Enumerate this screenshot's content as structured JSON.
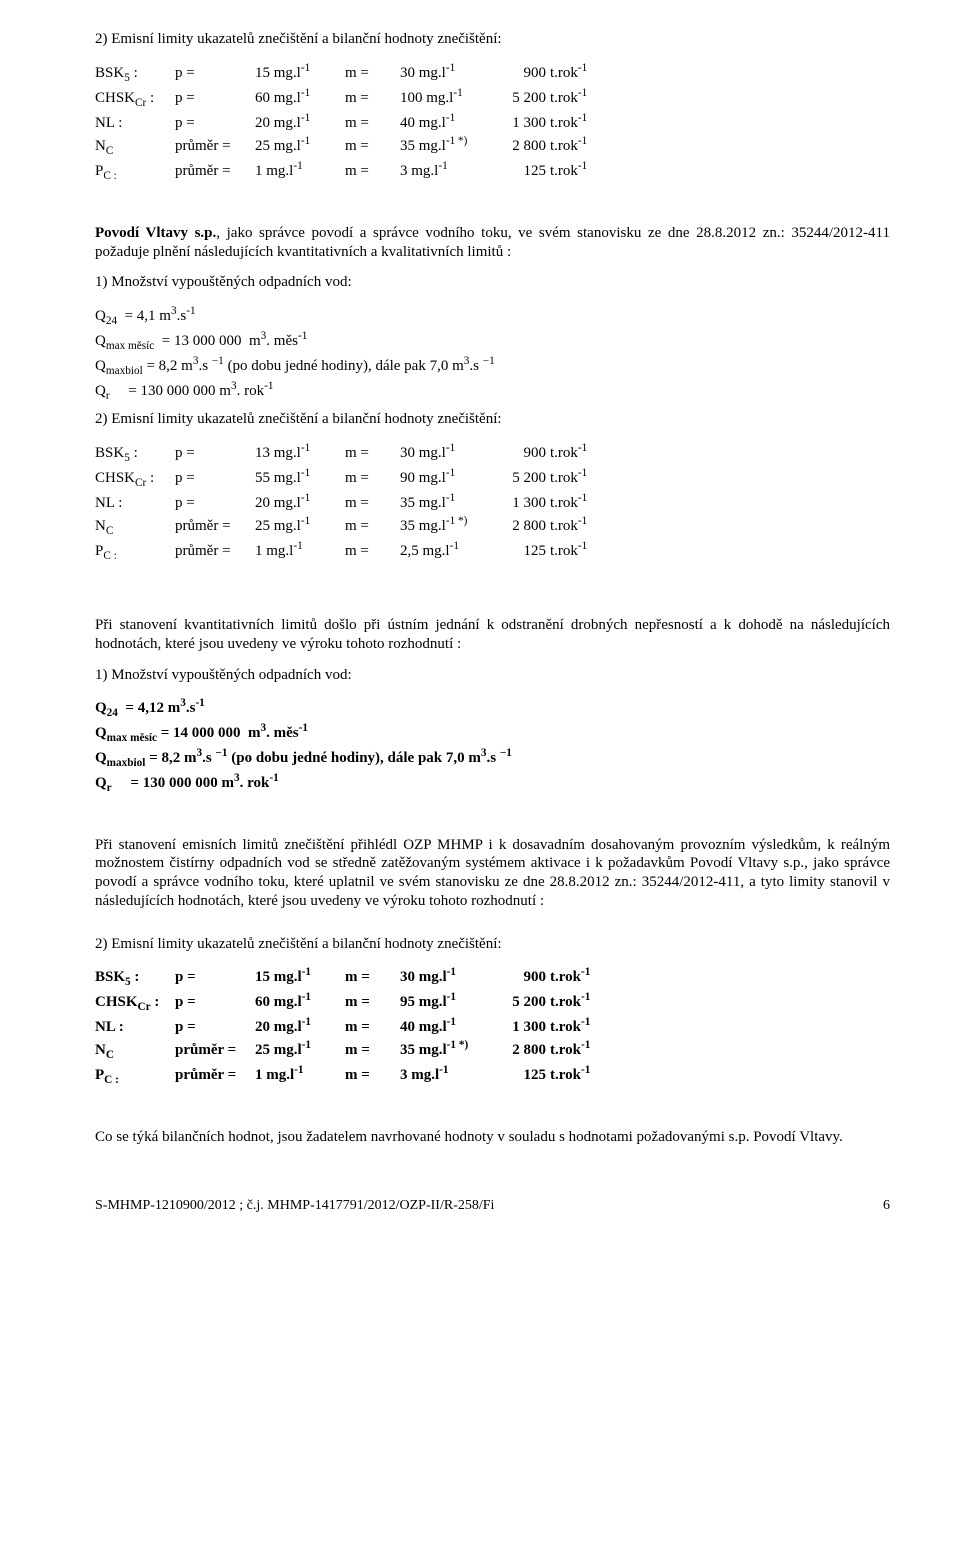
{
  "s1": {
    "heading": "2) Emisní limity ukazatelů znečištění a bilanční hodnoty znečištění:",
    "rows": [
      {
        "label": "BSK",
        "sub": "5",
        "rest": " :",
        "a": "p =",
        "b": "15 mg.l",
        "bsup": "-1",
        "c": "m =",
        "d": "30 mg.l",
        "dsup": "-1",
        "e": "900",
        "f": "t.rok",
        "fsup": "-1"
      },
      {
        "label": "CHSK",
        "sub": "Cr",
        "rest": " :",
        "a": "p =",
        "b": "60 mg.l",
        "bsup": "-1",
        "c": "m =",
        "d": "100 mg.l",
        "dsup": "-1",
        "e": "5 200",
        "f": "t.rok",
        "fsup": "-1"
      },
      {
        "label": "NL :",
        "sub": "",
        "rest": "",
        "a": "p =",
        "b": "20 mg.l",
        "bsup": "-1",
        "c": "m =",
        "d": "40 mg.l",
        "dsup": "-1",
        "e": "1 300",
        "f": "t.rok",
        "fsup": "-1"
      },
      {
        "label": "N",
        "sub": "C",
        "rest": "",
        "a": "průměr =",
        "b": "25 mg.l",
        "bsup": "-1",
        "c": "m =",
        "d": "35 mg.l",
        "dsup": "-1 *)",
        "e": "2 800",
        "f": "t.rok",
        "fsup": "-1"
      },
      {
        "label": "P",
        "sub": "C :",
        "rest": "",
        "a": "průměr =",
        "b": "1 mg.l",
        "bsup": "-1",
        "c": "m =",
        "d": "3 mg.l",
        "dsup": "-1",
        "e": "125",
        "f": "t.rok",
        "fsup": "-1"
      }
    ]
  },
  "s2": {
    "p1a": "Povodí Vltavy s.p.",
    "p1b": ", jako správce povodí a správce vodního toku, ve svém stanovisku ze dne 28.8.2012 zn.: 35244/2012-411 požaduje plnění následujících kvantitativních a kvalitativních limitů :",
    "h1": "1) Množství vypouštěných odpadních vod:",
    "q1_lhs": "Q",
    "q1_sub": "24",
    "q1_eq": "  = 4,1 m",
    "q1_sup": "3",
    "q1_rest": ".s",
    "q1_sup2": "-1",
    "q2_lhs": "Q",
    "q2_sub": "max měsíc",
    "q2_eq": "  = 13 000 000  m",
    "q2_sup": "3",
    "q2_rest": ". měs",
    "q2_sup2": "-1",
    "q3_lhs": "Q",
    "q3_sub": "maxbiol",
    "q3_eq": " = 8,2 m",
    "q3_sup": "3",
    "q3_rest": ".s ",
    "q3_sup2": "−1",
    "q3_tail": " (po dobu jedné hodiny), dále pak 7,0 m",
    "q3_sup3": "3",
    "q3_tail2": ".s ",
    "q3_sup4": "−1",
    "q4_lhs": "Q",
    "q4_sub": "r",
    "q4_eq": "     = 130 000 000 m",
    "q4_sup": "3",
    "q4_rest": ". rok",
    "q4_sup2": "-1",
    "h2": "2) Emisní limity ukazatelů znečištění a bilanční hodnoty znečištění:",
    "rows": [
      {
        "label": "BSK",
        "sub": "5",
        "rest": " :",
        "a": "p =",
        "b": "13 mg.l",
        "bsup": "-1",
        "c": "m =",
        "d": "30 mg.l",
        "dsup": "-1",
        "e": "900",
        "f": "t.rok",
        "fsup": "-1"
      },
      {
        "label": "CHSK",
        "sub": "Cr",
        "rest": " :",
        "a": "p =",
        "b": "55 mg.l",
        "bsup": "-1",
        "c": "m =",
        "d": "90 mg.l",
        "dsup": "-1",
        "e": "5 200",
        "f": "t.rok",
        "fsup": "-1"
      },
      {
        "label": "NL :",
        "sub": "",
        "rest": "",
        "a": "p =",
        "b": "20 mg.l",
        "bsup": "-1",
        "c": "m =",
        "d": "35 mg.l",
        "dsup": "-1",
        "e": "1 300",
        "f": "t.rok",
        "fsup": "-1"
      },
      {
        "label": "N",
        "sub": "C",
        "rest": "",
        "a": "průměr =",
        "b": "25 mg.l",
        "bsup": "-1",
        "c": "m =",
        "d": "35 mg.l",
        "dsup": "-1 *)",
        "e": "2 800",
        "f": "t.rok",
        "fsup": "-1"
      },
      {
        "label": "P",
        "sub": "C :",
        "rest": "",
        "a": "průměr =",
        "b": "1 mg.l",
        "bsup": "-1",
        "c": "m =",
        "d": "2,5 mg.l",
        "dsup": "-1",
        "e": "125",
        "f": "t.rok",
        "fsup": "-1"
      }
    ]
  },
  "s3": {
    "p1": "Při stanovení kvantitativních limitů došlo při ústním jednání k odstranění drobných nepřesností a k dohodě na následujících hodnotách, které jsou uvedeny ve výroku tohoto rozhodnutí :",
    "h1": "1) Množství vypouštěných odpadních vod:",
    "q1_lhs": "Q",
    "q1_sub": "24",
    "q1_eq": "  = 4,12 m",
    "q1_sup": "3",
    "q1_rest": ".s",
    "q1_sup2": "-1",
    "q2_lhs": "Q",
    "q2_sub": "max měsíc",
    "q2_eq": " = 14 000 000  m",
    "q2_sup": "3",
    "q2_rest": ". měs",
    "q2_sup2": "-1",
    "q3_lhs": "Q",
    "q3_sub": "maxbiol",
    "q3_eq": " = 8,2 m",
    "q3_sup": "3",
    "q3_rest": ".s ",
    "q3_sup2": "−1",
    "q3_tail": " (po dobu jedné hodiny), dále pak 7,0 m",
    "q3_sup3": "3",
    "q3_tail2": ".s ",
    "q3_sup4": "−1",
    "q4_lhs": "Q",
    "q4_sub": "r",
    "q4_eq": "     = 130 000 000 m",
    "q4_sup": "3",
    "q4_rest": ". rok",
    "q4_sup2": "-1"
  },
  "s4": {
    "p1": "Při stanovení emisních limitů znečištění přihlédl OZP MHMP i k dosavadním dosahovaným provozním výsledkům, k reálným možnostem čistírny odpadních vod se středně zatěžovaným systémem aktivace i k požadavkům Povodí Vltavy s.p., jako správce povodí a správce vodního toku, které uplatnil ve svém stanovisku ze dne 28.8.2012 zn.: 35244/2012-411, a tyto limity stanovil v následujících hodnotách, které jsou uvedeny ve výroku tohoto rozhodnutí :",
    "h2": "2) Emisní limity ukazatelů znečištění a bilanční hodnoty znečištění:",
    "rows": [
      {
        "label": "BSK",
        "sub": "5",
        "rest": " :",
        "a": "p =",
        "b": "15 mg.l",
        "bsup": "-1",
        "c": "m =",
        "d": "30 mg.l",
        "dsup": "-1",
        "e": "900",
        "f": "t.rok",
        "fsup": "-1"
      },
      {
        "label": "CHSK",
        "sub": "Cr",
        "rest": " :",
        "a": "p =",
        "b": "60 mg.l",
        "bsup": "-1",
        "c": "m =",
        "d": "95 mg.l",
        "dsup": "-1",
        "e": "5 200",
        "f": "t.rok",
        "fsup": "-1"
      },
      {
        "label": "NL :",
        "sub": "",
        "rest": "",
        "a": "p =",
        "b": "20 mg.l",
        "bsup": "-1",
        "c": "m =",
        "d": "40 mg.l",
        "dsup": "-1",
        "e": "1 300",
        "f": "t.rok",
        "fsup": "-1"
      },
      {
        "label": "N",
        "sub": "C",
        "rest": "",
        "a": "průměr =",
        "b": "25 mg.l",
        "bsup": "-1",
        "c": "m =",
        "d": "35 mg.l",
        "dsup": "-1 *)",
        "e": "2 800",
        "f": "t.rok",
        "fsup": "-1"
      },
      {
        "label": "P",
        "sub": "C :",
        "rest": "",
        "a": "průměr =",
        "b": "1 mg.l",
        "bsup": "-1",
        "c": "m =",
        "d": "3 mg.l",
        "dsup": "-1",
        "e": "125",
        "f": "t.rok",
        "fsup": "-1"
      }
    ]
  },
  "s5": {
    "p1": "Co se týká bilančních hodnot, jsou žadatelem navrhované hodnoty v souladu s hodnotami požadovanými s.p. Povodí Vltavy."
  },
  "footer": {
    "left": "S-MHMP-1210900/2012 ; č.j. MHMP-1417791/2012/OZP-II/R-258/Fi",
    "page": "6"
  }
}
